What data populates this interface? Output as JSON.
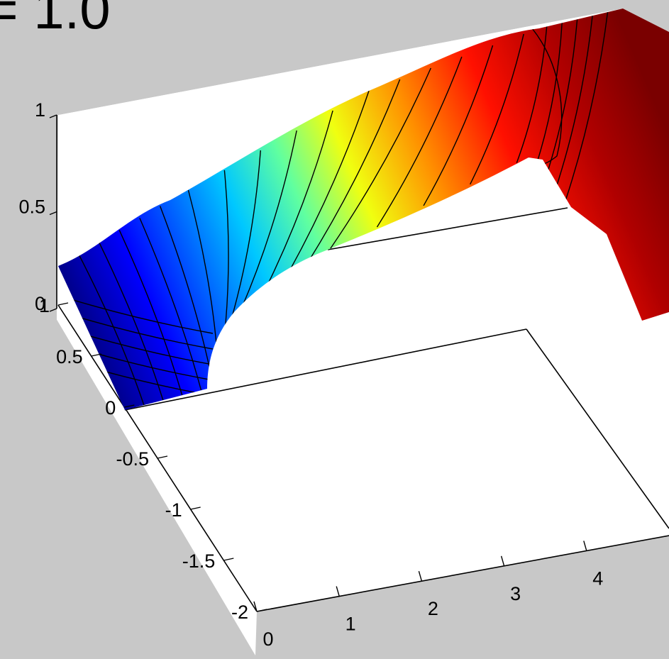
{
  "title": "= 1.0",
  "chart_data": {
    "type": "surface",
    "title": "= 1.0",
    "xlabel": "",
    "ylabel": "",
    "zlabel": "",
    "xlim": [
      0,
      5
    ],
    "ylim": [
      -2,
      1
    ],
    "zlim": [
      0,
      1
    ],
    "x_ticks": [
      0,
      1,
      2,
      3,
      4
    ],
    "y_ticks": [
      -2,
      -1.5,
      -1,
      -0.5,
      0,
      0.5,
      1
    ],
    "z_ticks": [
      0,
      0.5,
      1
    ],
    "x_tick_labels": [
      "0",
      "1",
      "2",
      "3",
      "4"
    ],
    "y_tick_labels": [
      "-2",
      "-1.5",
      "-1",
      "-0.5",
      "0",
      "0.5",
      "1"
    ],
    "z_tick_labels": [
      "0",
      "0.5",
      "1"
    ],
    "colormap": "jet",
    "contour_levels": 22,
    "grid": false,
    "legend": "none",
    "surface_profile": {
      "x": [
        0,
        0.5,
        1.0,
        1.5,
        2.0,
        2.5,
        3.0,
        3.5,
        4.0,
        4.5,
        5.0
      ],
      "value": [
        0.0,
        0.14,
        0.27,
        0.41,
        0.53,
        0.64,
        0.74,
        0.83,
        0.91,
        0.97,
        1.0
      ]
    },
    "colors": {
      "background": "#c8c8c8",
      "axes_face": "#ffffff",
      "low": "#00008f",
      "mid": "#80ff80",
      "high": "#800000",
      "contour": "#000000"
    }
  }
}
